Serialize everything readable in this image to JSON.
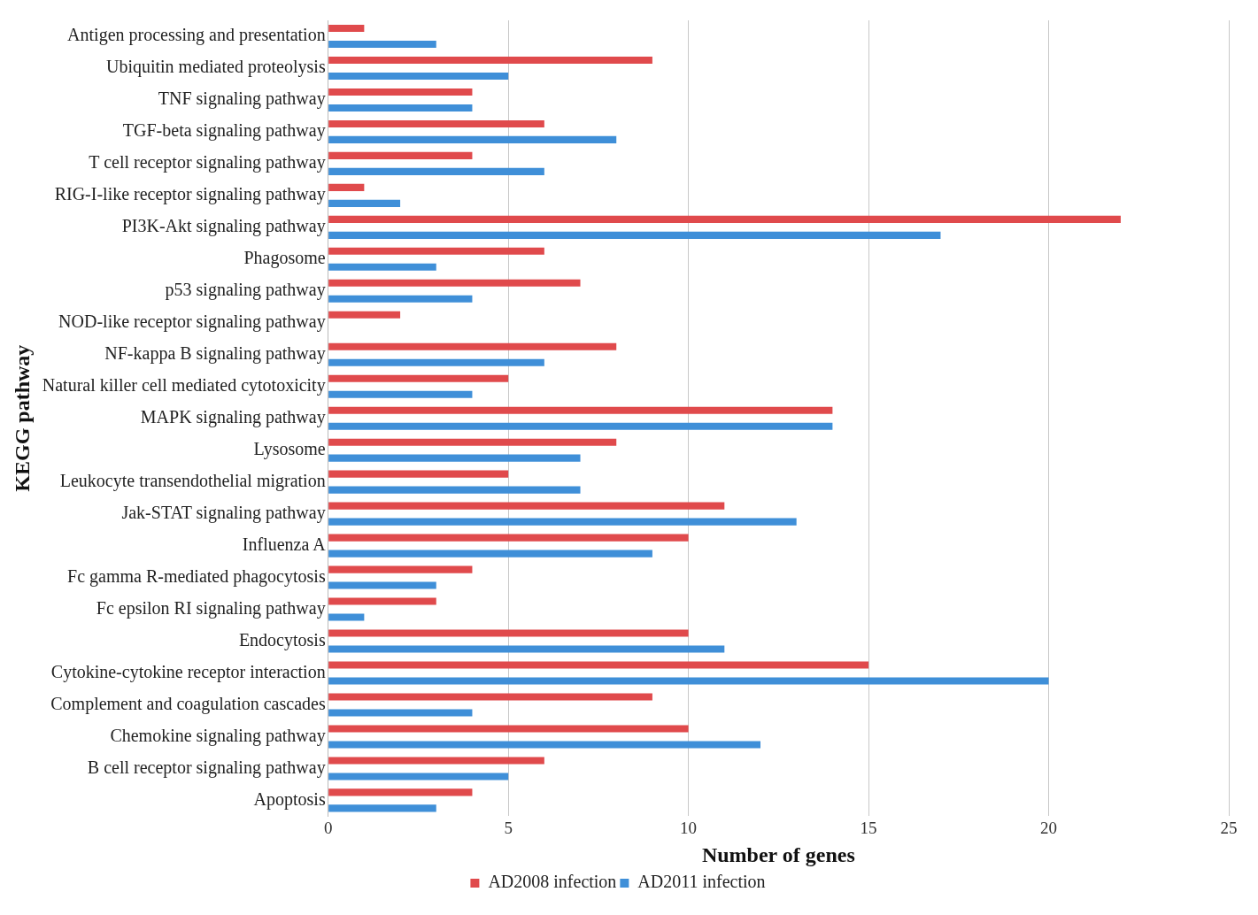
{
  "chart_data": {
    "type": "bar",
    "orientation": "horizontal",
    "xlabel": "Number of genes",
    "ylabel": "KEGG pathway",
    "categories": [
      "Antigen processing and presentation",
      "Ubiquitin mediated proteolysis",
      "TNF signaling pathway",
      "TGF-beta signaling pathway",
      "T cell receptor signaling pathway",
      "RIG-I-like receptor signaling pathway",
      "PI3K-Akt signaling pathway",
      "Phagosome",
      "p53 signaling pathway",
      "NOD-like receptor signaling pathway",
      "NF-kappa B signaling pathway",
      "Natural killer cell mediated cytotoxicity",
      "MAPK signaling pathway",
      "Lysosome",
      "Leukocyte transendothelial migration",
      "Jak-STAT signaling pathway",
      "Influenza A",
      "Fc gamma R-mediated phagocytosis",
      "Fc epsilon RI signaling pathway",
      "Endocytosis",
      "Cytokine-cytokine receptor interaction",
      "Complement and coagulation cascades",
      "Chemokine signaling pathway",
      "B cell receptor signaling pathway",
      "Apoptosis"
    ],
    "series": [
      {
        "name": "AD2008 infection",
        "color": "#e04a4c",
        "values": [
          1,
          9,
          4,
          6,
          4,
          1,
          22,
          6,
          7,
          2,
          8,
          5,
          14,
          8,
          5,
          11,
          10,
          4,
          3,
          10,
          15,
          9,
          10,
          6,
          4
        ]
      },
      {
        "name": "AD2011 infection",
        "color": "#3f8fd8",
        "values": [
          3,
          5,
          4,
          8,
          6,
          2,
          17,
          3,
          4,
          0,
          6,
          4,
          14,
          7,
          7,
          13,
          9,
          3,
          1,
          11,
          20,
          4,
          12,
          5,
          3
        ]
      }
    ],
    "xlim": [
      0,
      25
    ],
    "xticks": [
      0,
      5,
      10,
      15,
      20,
      25
    ],
    "grid": "x",
    "legend": "bottom"
  }
}
